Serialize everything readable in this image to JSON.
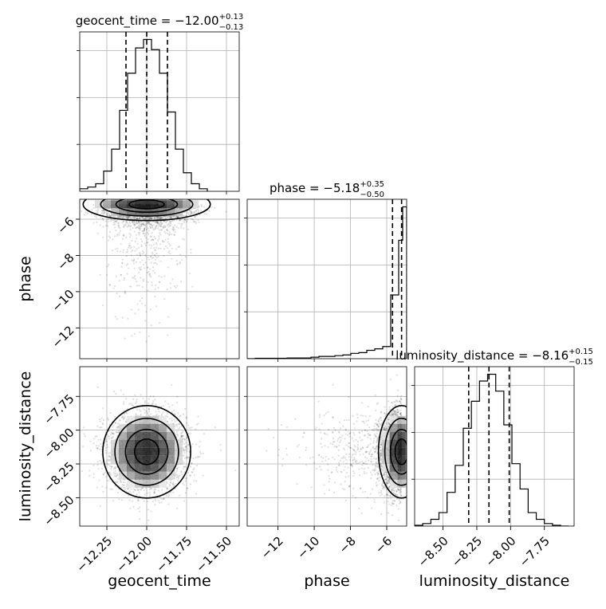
{
  "chart_data": {
    "type": "corner",
    "parameters": [
      "geocent_time",
      "phase",
      "luminosity_distance"
    ],
    "titles": [
      {
        "param": "geocent_time",
        "prefix": "geocent_time = ",
        "median": "−12.00",
        "plus": "+0.13",
        "minus": "−0.13"
      },
      {
        "param": "phase",
        "prefix": "phase = ",
        "median": "−5.18",
        "plus": "+0.35",
        "minus": "−0.50"
      },
      {
        "param": "luminosity_distance",
        "prefix": "luminosity_distance = ",
        "median": "−8.16",
        "plus": "+0.15",
        "minus": "−0.15"
      }
    ],
    "axis_labels": {
      "geocent_time": "geocent_time",
      "phase": "phase",
      "luminosity_distance": "luminosity_distance"
    },
    "ranges": {
      "geocent_time": [
        -12.42,
        -11.42
      ],
      "phase": [
        -13.7,
        -4.9
      ],
      "luminosity_distance": [
        -8.71,
        -7.53
      ]
    },
    "ticks": {
      "geocent_time": [
        -12.25,
        -12.0,
        -11.75,
        -11.5
      ],
      "phase": [
        -12,
        -10,
        -8,
        -6
      ],
      "luminosity_distance": [
        -8.5,
        -8.25,
        -8.0,
        -7.75
      ]
    },
    "tick_labels": {
      "geocent_time": [
        "−12.25",
        "−12.00",
        "−11.75",
        "−11.50"
      ],
      "phase": [
        "−12",
        "−10",
        "−8",
        "−6"
      ],
      "luminosity_distance": [
        "−8.50",
        "−8.25",
        "−8.00",
        "−7.75"
      ]
    },
    "quantiles": {
      "geocent_time": [
        -12.13,
        -12.0,
        -11.87
      ],
      "phase": [
        -5.68,
        -5.18,
        -4.83
      ],
      "luminosity_distance": [
        -8.31,
        -8.16,
        -8.01
      ]
    },
    "histograms": {
      "geocent_time": {
        "edges": [
          -12.42,
          -12.37,
          -12.32,
          -12.27,
          -12.22,
          -12.17,
          -12.12,
          -12.07,
          -12.02,
          -11.97,
          -11.92,
          -11.87,
          -11.82,
          -11.77,
          -11.72,
          -11.67,
          -11.62
        ],
        "counts": [
          1.5,
          2.5,
          4.5,
          12,
          25,
          48,
          70,
          85,
          90,
          84,
          70,
          47,
          25,
          11,
          4.5,
          1.5
        ]
      },
      "phase": {
        "edges": [
          -13.7,
          -13.26,
          -12.82,
          -12.38,
          -11.94,
          -11.5,
          -11.06,
          -10.62,
          -10.18,
          -9.74,
          -9.3,
          -8.86,
          -8.42,
          -7.98,
          -7.54,
          -7.1,
          -6.66,
          -6.22,
          -5.78,
          -5.34,
          -5.12,
          -4.9
        ],
        "counts": [
          0,
          0.3,
          0.3,
          0.3,
          0.3,
          0.5,
          0.5,
          0.5,
          1,
          1.5,
          1.5,
          2,
          2.5,
          3.5,
          4,
          5.5,
          6.5,
          8,
          42,
          78,
          100
        ]
      },
      "luminosity_distance": {
        "edges": [
          -8.71,
          -8.65,
          -8.59,
          -8.53,
          -8.47,
          -8.41,
          -8.35,
          -8.29,
          -8.23,
          -8.17,
          -8.11,
          -8.05,
          -7.99,
          -7.93,
          -7.87,
          -7.81,
          -7.75,
          -7.69,
          -7.63,
          -7.57
        ],
        "counts": [
          0.5,
          1.5,
          4,
          8,
          20,
          36,
          58,
          74,
          86,
          90,
          80,
          60,
          37,
          22,
          8,
          4,
          1.5,
          0.5,
          0
        ]
      }
    },
    "joint": [
      {
        "x": "geocent_time",
        "y": "phase",
        "x_center": -12.0,
        "y_center": -5.18
      },
      {
        "x": "geocent_time",
        "y": "luminosity_distance",
        "x_center": -12.0,
        "y_center": -8.16
      },
      {
        "x": "phase",
        "y": "luminosity_distance",
        "x_center": -5.18,
        "y_center": -8.16
      }
    ],
    "grid": true
  }
}
